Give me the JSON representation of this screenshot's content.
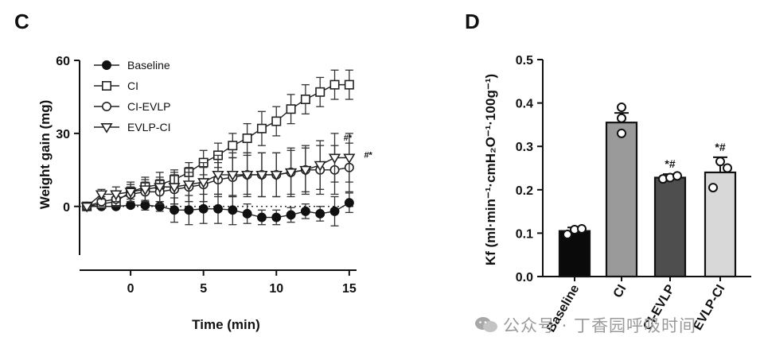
{
  "panels": {
    "left_letter": "C",
    "right_letter": "D"
  },
  "watermark": {
    "text": "公众号 · 丁香园呼吸时间",
    "icon": "wechat-icon"
  },
  "chart_data": [
    {
      "type": "line",
      "xlabel": "Time (min)",
      "ylabel": "Weight gain (mg)",
      "xlim": [
        -3.5,
        15.5
      ],
      "ylim": [
        -20,
        60
      ],
      "xticks": [
        0,
        5,
        10,
        15
      ],
      "yticks": [
        0,
        30,
        60
      ],
      "x": [
        -3,
        -2,
        -1,
        0,
        1,
        2,
        3,
        4,
        5,
        6,
        7,
        8,
        9,
        10,
        11,
        12,
        13,
        14,
        15
      ],
      "legend_position": "top-left",
      "reference_line": {
        "y": 0,
        "style": "dotted"
      },
      "series": [
        {
          "name": "Baseline",
          "marker": "filled-circle",
          "y": [
            0,
            0,
            0,
            0.5,
            0.5,
            0,
            -1.5,
            -1.5,
            -1,
            -1,
            -1.5,
            -3,
            -4.5,
            -4.5,
            -3.5,
            -2,
            -3,
            -2,
            1.5
          ],
          "err": [
            0,
            0,
            0,
            0,
            2,
            2,
            5,
            6,
            6,
            6,
            6,
            4,
            3,
            3,
            3,
            3,
            3,
            6,
            4
          ]
        },
        {
          "name": "CI",
          "marker": "open-square",
          "y": [
            0,
            1,
            2,
            6,
            8,
            9,
            11,
            14,
            18,
            21,
            25,
            28,
            32,
            35,
            40,
            44,
            47,
            50,
            50
          ],
          "err": [
            0,
            0,
            2,
            3,
            3,
            3,
            3,
            4,
            5,
            5,
            5,
            6,
            7,
            6,
            6,
            6,
            6,
            6,
            6
          ]
        },
        {
          "name": "CI-EVLP",
          "marker": "open-circle",
          "y": [
            0,
            2,
            3,
            5,
            6,
            6,
            7,
            8,
            9,
            11,
            12,
            13,
            13,
            13,
            14,
            15,
            15,
            15,
            16
          ],
          "err": [
            0,
            2,
            3,
            3,
            4,
            5,
            6,
            6,
            7,
            7,
            8,
            8,
            9,
            9,
            9,
            9,
            10,
            10,
            10
          ]
        },
        {
          "name": "EVLP-CI",
          "marker": "open-triangle-down",
          "y": [
            0,
            5,
            5,
            6,
            7,
            8,
            8,
            9,
            10,
            13,
            13,
            13,
            13,
            13,
            14,
            15,
            17,
            20,
            20
          ],
          "err": [
            0,
            2,
            3,
            4,
            5,
            6,
            7,
            7,
            8,
            8,
            9,
            9,
            9,
            9,
            10,
            10,
            10,
            10,
            10
          ]
        }
      ],
      "annotations": [
        {
          "text": "#*",
          "x": 14.9,
          "y": 27
        },
        {
          "text": "#*",
          "x": 16.3,
          "y": 20
        }
      ]
    },
    {
      "type": "bar",
      "ylabel": "Kf (ml·min⁻¹·cmH₂O⁻¹·100g⁻¹)",
      "ylim": [
        0,
        0.5
      ],
      "yticks": [
        0.0,
        0.1,
        0.2,
        0.3,
        0.4,
        0.5
      ],
      "categories": [
        "Baseline",
        "CI",
        "CI-EVLP",
        "EVLP-CI"
      ],
      "values": [
        0.105,
        0.355,
        0.228,
        0.24
      ],
      "errors": [
        0.008,
        0.022,
        0.008,
        0.035
      ],
      "points": [
        [
          0.097,
          0.108,
          0.11
        ],
        [
          0.39,
          0.365,
          0.33
        ],
        [
          0.225,
          0.228,
          0.232
        ],
        [
          0.205,
          0.265,
          0.25
        ]
      ],
      "colors": [
        "#0a0a0a",
        "#9a9a9a",
        "#4e4e4e",
        "#d8d8d8"
      ],
      "annotations": [
        {
          "category": "CI-EVLP",
          "text": "*#"
        },
        {
          "category": "EVLP-CI",
          "text": "*#"
        }
      ]
    }
  ]
}
